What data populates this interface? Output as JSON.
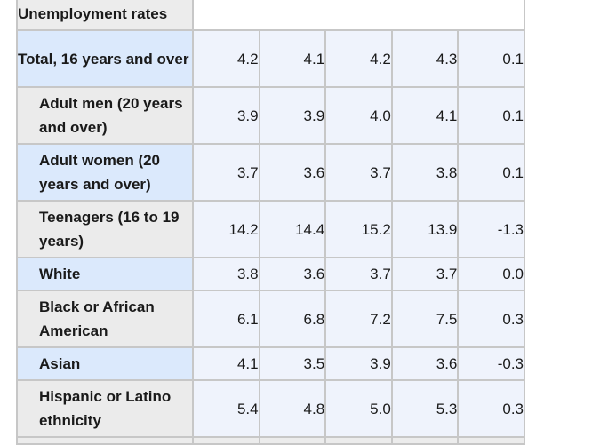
{
  "table": {
    "caption": "Unemployment rates",
    "rows": [
      {
        "label": "Total, 16 years and over",
        "indent": false,
        "shade": "hi",
        "values": [
          "4.2",
          "4.1",
          "4.2",
          "4.3",
          "0.1"
        ]
      },
      {
        "label": "Adult men (20 years and over)",
        "indent": true,
        "shade": "gr",
        "values": [
          "3.9",
          "3.9",
          "4.0",
          "4.1",
          "0.1"
        ]
      },
      {
        "label": "Adult women (20 years and over)",
        "indent": true,
        "shade": "hi",
        "values": [
          "3.7",
          "3.6",
          "3.7",
          "3.8",
          "0.1"
        ]
      },
      {
        "label": "Teenagers (16 to 19 years)",
        "indent": true,
        "shade": "gr",
        "values": [
          "14.2",
          "14.4",
          "15.2",
          "13.9",
          "-1.3"
        ]
      },
      {
        "label": "White",
        "indent": true,
        "shade": "hi",
        "values": [
          "3.8",
          "3.6",
          "3.7",
          "3.7",
          "0.0"
        ]
      },
      {
        "label": "Black or African American",
        "indent": true,
        "shade": "gr",
        "values": [
          "6.1",
          "6.8",
          "7.2",
          "7.5",
          "0.3"
        ]
      },
      {
        "label": "Asian",
        "indent": true,
        "shade": "hi",
        "values": [
          "4.1",
          "3.5",
          "3.9",
          "3.6",
          "-0.3"
        ]
      },
      {
        "label": "Hispanic or Latino ethnicity",
        "indent": true,
        "shade": "gr",
        "values": [
          "5.4",
          "4.8",
          "5.0",
          "5.3",
          "0.3"
        ]
      }
    ]
  },
  "colors": {
    "label_highlight": "#dbe9fc",
    "label_gray": "#ebebeb",
    "value_cell": "#eff3fc",
    "border": "#c7c7c7"
  }
}
